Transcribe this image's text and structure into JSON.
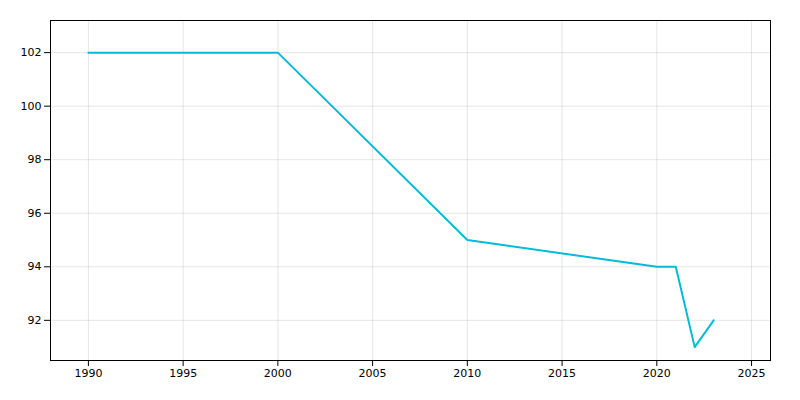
{
  "chart_data": {
    "type": "line",
    "x": [
      1990,
      2000,
      2010,
      2020,
      2021,
      2022,
      2023
    ],
    "values": [
      102,
      102,
      95,
      94,
      94,
      91,
      92
    ],
    "color": "#00bcd4",
    "xlim": [
      1988,
      2026
    ],
    "ylim": [
      90.5,
      103.2
    ],
    "xticks": [
      1990,
      1995,
      2000,
      2005,
      2010,
      2015,
      2020,
      2025
    ],
    "yticks": [
      92,
      94,
      96,
      98,
      100,
      102
    ],
    "grid": true
  }
}
